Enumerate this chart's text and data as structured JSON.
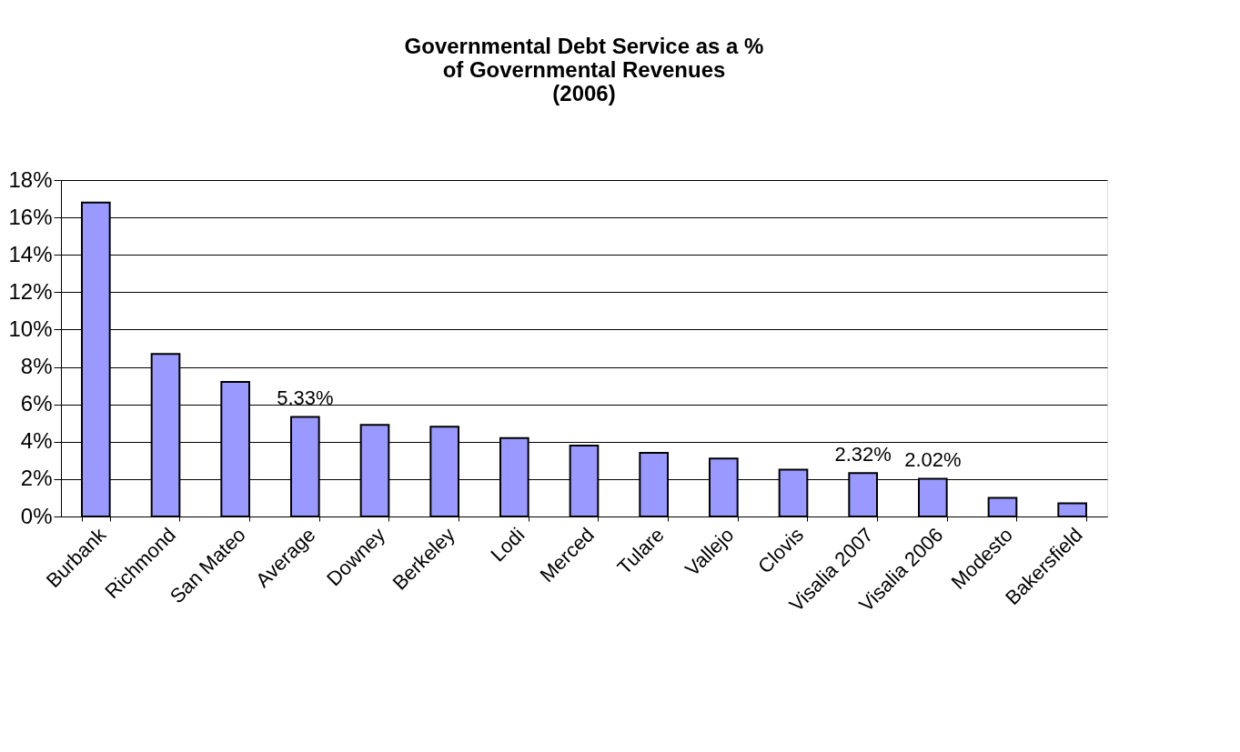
{
  "chart_data": {
    "type": "bar",
    "title": [
      "Governmental Debt Service as a %",
      "of Governmental Revenues",
      "(2006)"
    ],
    "categories": [
      "Burbank",
      "Richmond",
      "San Mateo",
      "Average",
      "Downey",
      "Berkeley",
      "Lodi",
      "Merced",
      "Tulare",
      "Vallejo",
      "Clovis",
      "Visalia 2007",
      "Visalia 2006",
      "Modesto",
      "Bakersfield"
    ],
    "values": [
      16.8,
      8.7,
      7.2,
      5.33,
      4.9,
      4.8,
      4.2,
      3.8,
      3.4,
      3.1,
      2.5,
      2.32,
      2.02,
      1.0,
      0.7
    ],
    "value_labels": [
      null,
      null,
      null,
      "5.33%",
      null,
      null,
      null,
      null,
      null,
      null,
      null,
      "2.32%",
      "2.02%",
      null,
      null
    ],
    "color": "#9999ff",
    "ylim": [
      0,
      18
    ],
    "yticks": [
      {
        "value": 0,
        "label": "0%"
      },
      {
        "value": 2,
        "label": "2%"
      },
      {
        "value": 4,
        "label": "4%"
      },
      {
        "value": 6,
        "label": "6%"
      },
      {
        "value": 8,
        "label": "8%"
      },
      {
        "value": 10,
        "label": "10%"
      },
      {
        "value": 12,
        "label": "12%"
      },
      {
        "value": 14,
        "label": "14%"
      },
      {
        "value": 16,
        "label": "16%"
      },
      {
        "value": 18,
        "label": "18%"
      }
    ],
    "grid": "y"
  }
}
